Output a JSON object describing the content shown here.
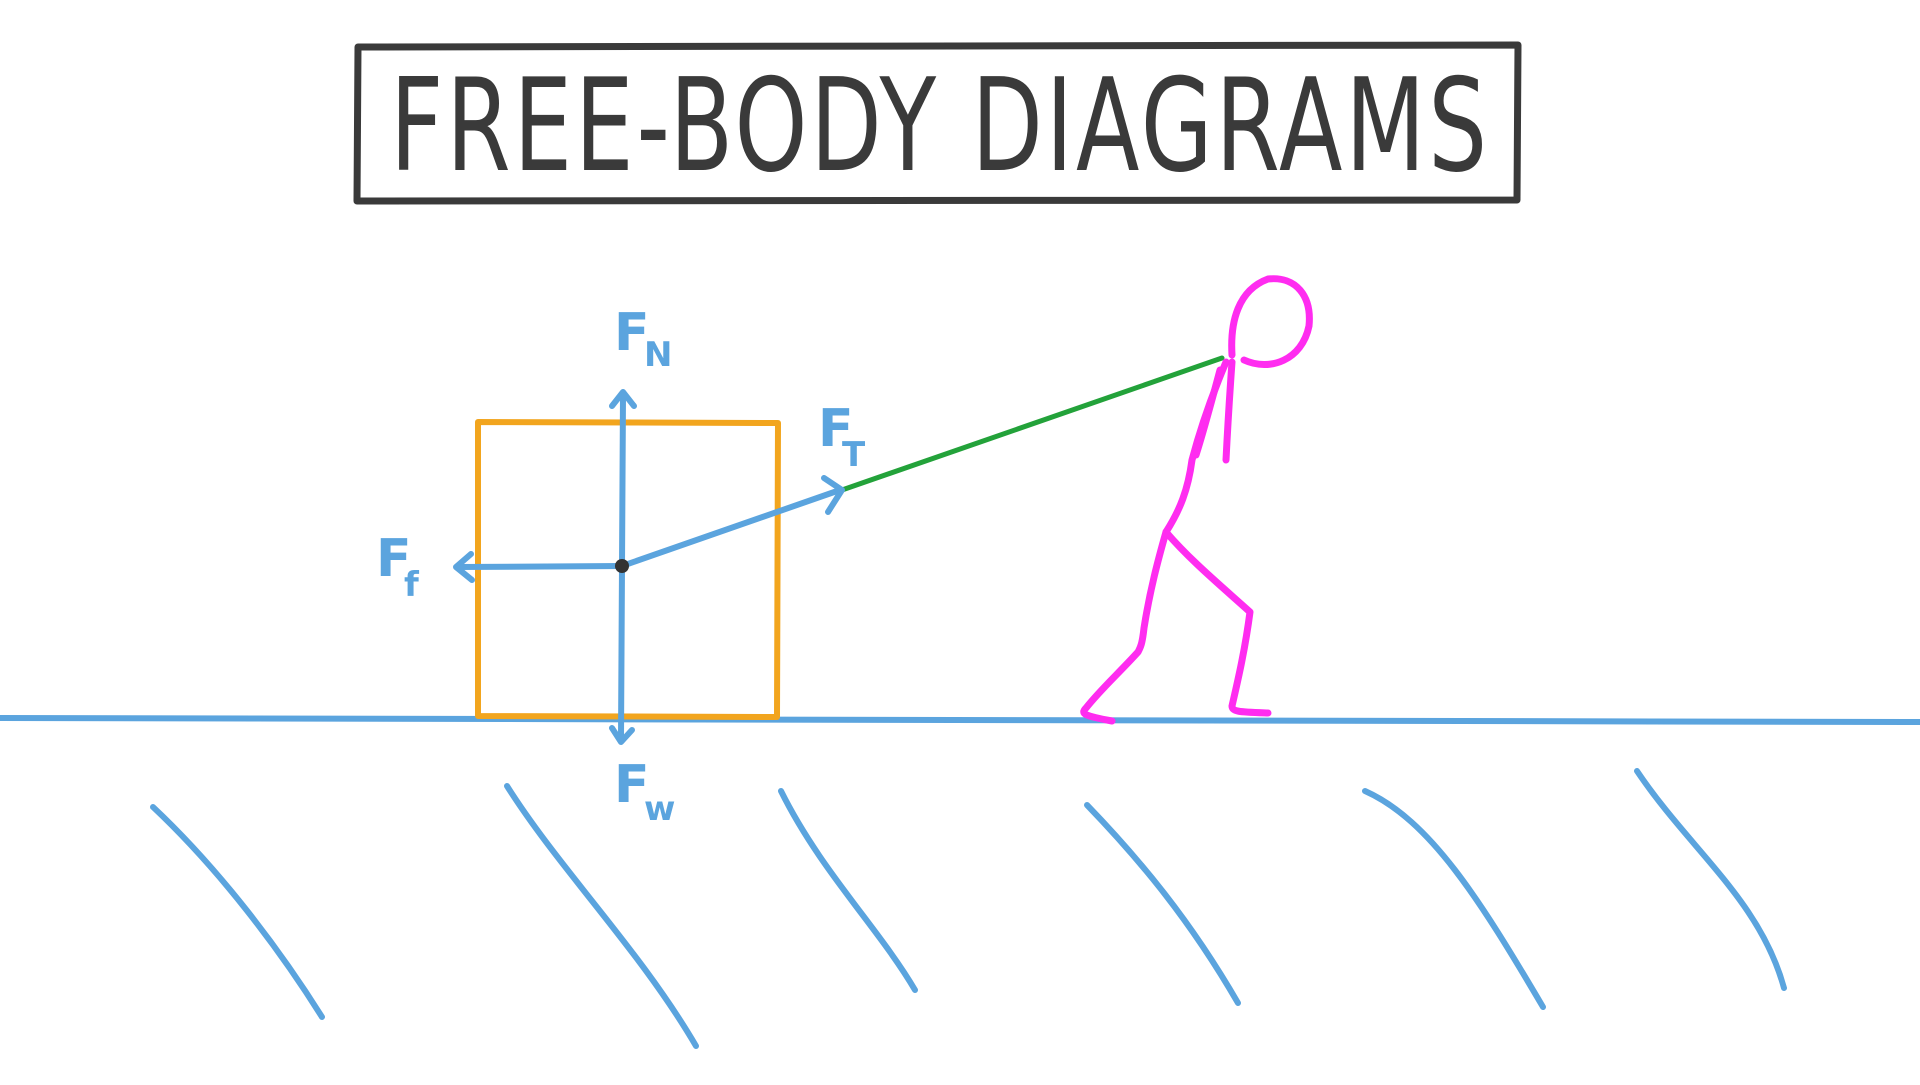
{
  "title": "FREE-BODY DIAGRAMS",
  "forces": {
    "normal": {
      "symbol": "F",
      "subscript": "N"
    },
    "tension": {
      "symbol": "F",
      "subscript": "T"
    },
    "friction": {
      "symbol": "F",
      "subscript": "f"
    },
    "weight": {
      "symbol": "F",
      "subscript": "w"
    }
  },
  "colors": {
    "title": "#3a3a3a",
    "force": "#5ba4de",
    "box": "#f2a51e",
    "rope": "#23a23a",
    "person": "#ff2cf0",
    "ground": "#5ba4de",
    "center_point": "#333333"
  }
}
